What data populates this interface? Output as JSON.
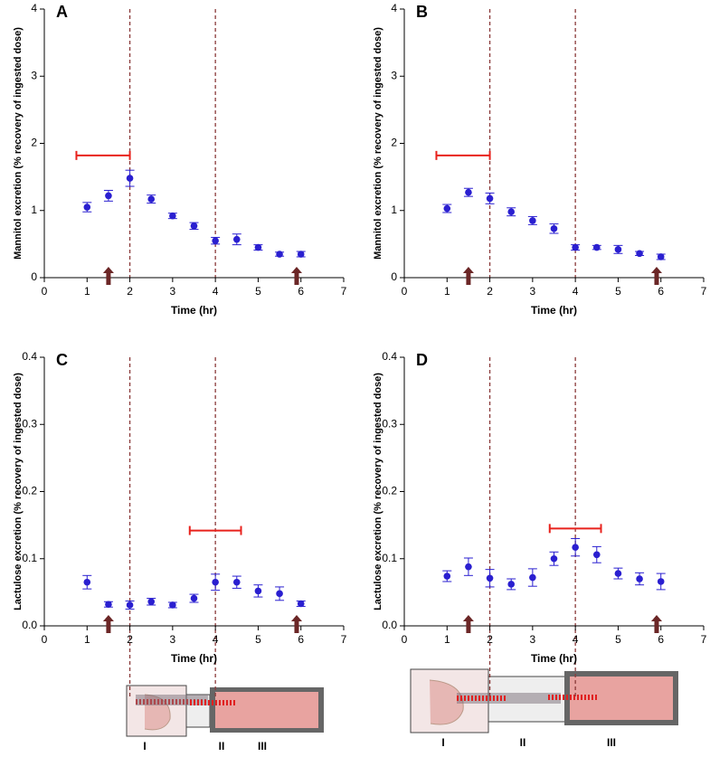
{
  "chart_data": [
    {
      "type": "scatter",
      "panel": "A",
      "ylabel": "Mannitol excretion (% recovery of ingested dose)",
      "xlabel": "Time (hr)",
      "x": [
        1,
        1.5,
        2,
        2.5,
        3,
        3.5,
        4,
        4.5,
        5,
        5.5,
        6
      ],
      "series": [
        {
          "color": "#2a1fd0",
          "values": [
            1.05,
            1.22,
            1.48,
            1.17,
            0.92,
            0.77,
            0.55,
            0.57,
            0.45,
            0.35,
            0.35
          ],
          "errors": [
            0.07,
            0.08,
            0.12,
            0.06,
            0.04,
            0.05,
            0.05,
            0.08,
            0.04,
            0.03,
            0.04
          ]
        }
      ],
      "xlim": [
        0,
        7
      ],
      "xticks": [
        0,
        1,
        2,
        3,
        4,
        5,
        6,
        7
      ],
      "ylim": [
        0,
        4
      ],
      "yticks": [
        0,
        1,
        2,
        3,
        4
      ],
      "range": {
        "x": [
          0.75,
          2
        ],
        "y": 1.82,
        "color": "#e8221c"
      },
      "arrows": [
        1.5,
        5.9
      ],
      "arrow_color": "#6b2626",
      "dividers": [
        2,
        4
      ],
      "divider_color": "#8a3a3a"
    },
    {
      "type": "scatter",
      "panel": "B",
      "ylabel": "Mannitol excretion (% recovery of ingested dose)",
      "xlabel": "Time (hr)",
      "x": [
        1,
        1.5,
        2,
        2.5,
        3,
        3.5,
        4,
        4.5,
        5,
        5.5,
        6
      ],
      "series": [
        {
          "color": "#2a1fd0",
          "values": [
            1.03,
            1.27,
            1.18,
            0.98,
            0.85,
            0.73,
            0.45,
            0.45,
            0.42,
            0.36,
            0.31
          ],
          "errors": [
            0.06,
            0.06,
            0.08,
            0.06,
            0.06,
            0.07,
            0.04,
            0.03,
            0.06,
            0.03,
            0.04
          ]
        }
      ],
      "xlim": [
        0,
        7
      ],
      "xticks": [
        0,
        1,
        2,
        3,
        4,
        5,
        6,
        7
      ],
      "ylim": [
        0,
        4
      ],
      "yticks": [
        0,
        1,
        2,
        3,
        4
      ],
      "range": {
        "x": [
          0.75,
          2
        ],
        "y": 1.82,
        "color": "#e8221c"
      },
      "arrows": [
        1.5,
        5.9
      ],
      "arrow_color": "#6b2626",
      "dividers": [
        2,
        4
      ],
      "divider_color": "#8a3a3a"
    },
    {
      "type": "scatter",
      "panel": "C",
      "ylabel": "Lactulose excretion (% recovery of ingested dose)",
      "xlabel": "Time (hr)",
      "x": [
        1,
        1.5,
        2,
        2.5,
        3,
        3.5,
        4,
        4.5,
        5,
        5.5,
        6
      ],
      "series": [
        {
          "color": "#2a1fd0",
          "values": [
            0.065,
            0.032,
            0.031,
            0.036,
            0.031,
            0.041,
            0.065,
            0.065,
            0.052,
            0.048,
            0.033
          ],
          "errors": [
            0.01,
            0.004,
            0.006,
            0.005,
            0.004,
            0.006,
            0.012,
            0.009,
            0.009,
            0.01,
            0.004
          ]
        }
      ],
      "xlim": [
        0,
        7
      ],
      "xticks": [
        0,
        1,
        2,
        3,
        4,
        5,
        6,
        7
      ],
      "ylim": [
        0,
        0.4
      ],
      "yticks": [
        {
          "value": 0,
          "label": "0.0"
        },
        0.1,
        0.2,
        0.3,
        0.4
      ],
      "range": {
        "x": [
          3.4,
          4.6
        ],
        "y": 0.142,
        "color": "#e8221c"
      },
      "arrows": [
        1.5,
        5.9
      ],
      "arrow_color": "#6b2626",
      "dividers": [
        2,
        4
      ],
      "divider_color": "#8a3a3a"
    },
    {
      "type": "scatter",
      "panel": "D",
      "ylabel": "Lactulose excretion (% recovery of ingested dose)",
      "xlabel": "Time (hr)",
      "x": [
        1,
        1.5,
        2,
        2.5,
        3,
        3.5,
        4,
        4.5,
        5,
        5.5,
        6
      ],
      "series": [
        {
          "color": "#2a1fd0",
          "values": [
            0.074,
            0.088,
            0.071,
            0.062,
            0.072,
            0.1,
            0.117,
            0.106,
            0.078,
            0.07,
            0.066
          ],
          "errors": [
            0.008,
            0.013,
            0.013,
            0.008,
            0.013,
            0.01,
            0.013,
            0.012,
            0.008,
            0.009,
            0.012
          ]
        }
      ],
      "xlim": [
        0,
        7
      ],
      "xticks": [
        0,
        1,
        2,
        3,
        4,
        5,
        6,
        7
      ],
      "ylim": [
        0,
        0.4
      ],
      "yticks": [
        {
          "value": 0,
          "label": "0.0"
        },
        0.1,
        0.2,
        0.3,
        0.4
      ],
      "range": {
        "x": [
          3.4,
          4.6
        ],
        "y": 0.145,
        "color": "#e8221c"
      },
      "arrows": [
        1.5,
        5.9
      ],
      "arrow_color": "#6b2626",
      "dividers": [
        2,
        4
      ],
      "divider_color": "#8a3a3a"
    }
  ],
  "diagrams": [
    {
      "labels": [
        "I",
        "II",
        "III"
      ]
    },
    {
      "labels": [
        "I",
        "II",
        "III"
      ]
    }
  ]
}
